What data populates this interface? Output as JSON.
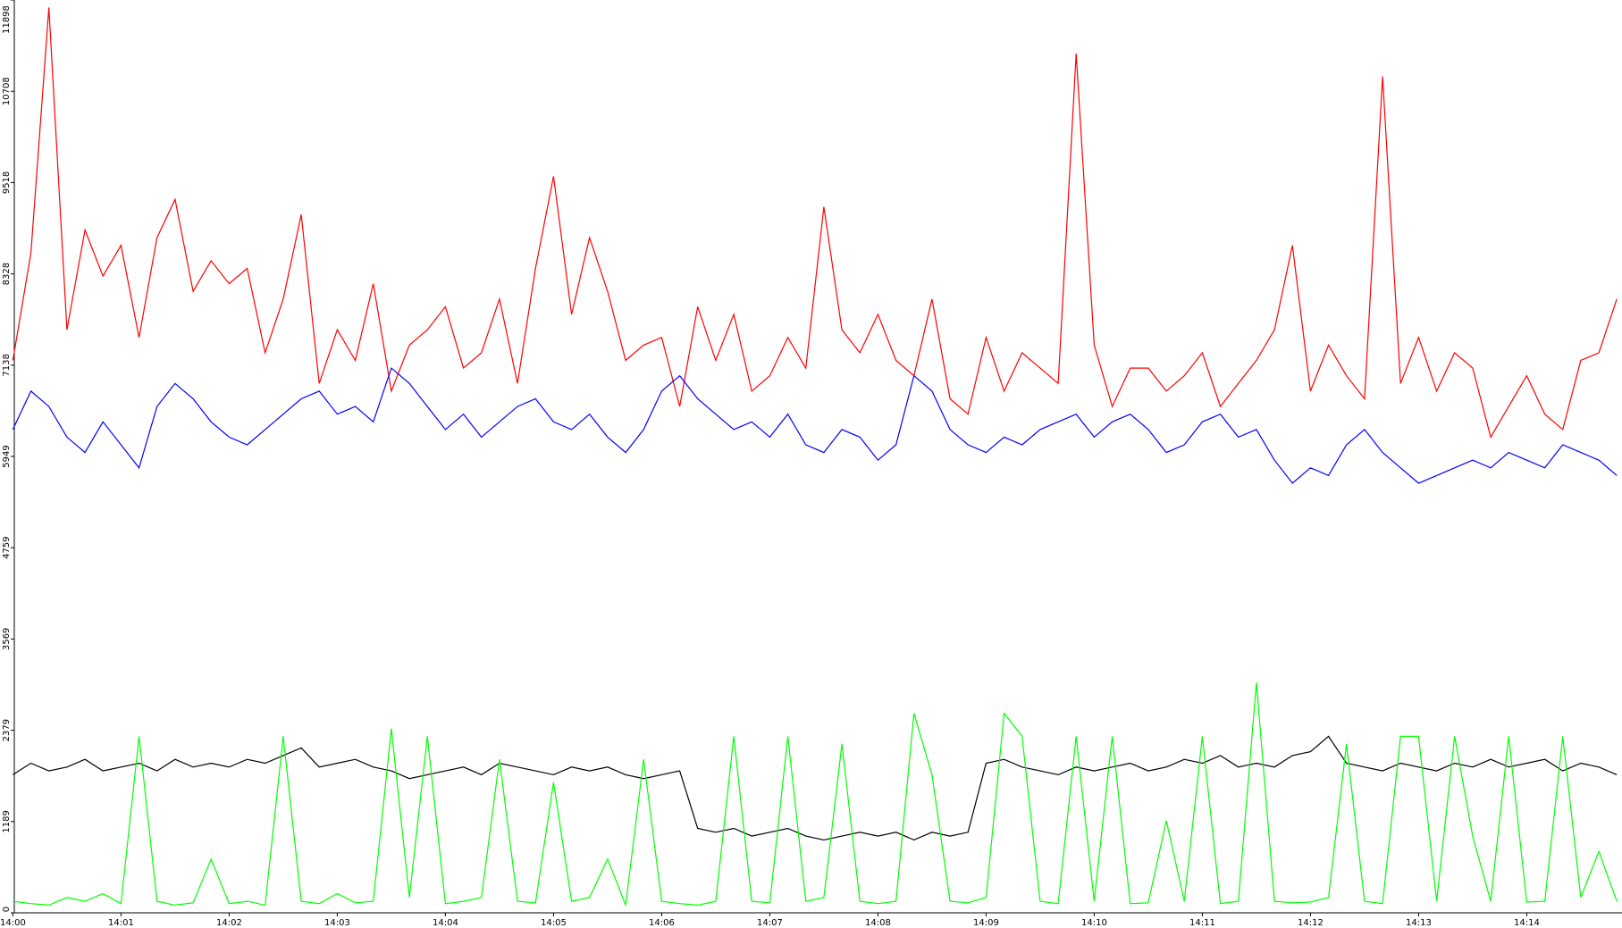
{
  "chart_data": {
    "type": "line",
    "categories": [
      "14:00",
      null,
      null,
      null,
      null,
      null,
      "14:01",
      null,
      null,
      null,
      null,
      null,
      "14:02",
      null,
      null,
      null,
      null,
      null,
      "14:03",
      null,
      null,
      null,
      null,
      null,
      "14:04",
      null,
      null,
      null,
      null,
      null,
      "14:05",
      null,
      null,
      null,
      null,
      null,
      "14:06",
      null,
      null,
      null,
      null,
      null,
      "14:07",
      null,
      null,
      null,
      null,
      null,
      "14:08",
      null,
      null,
      null,
      null,
      null,
      "14:09",
      null,
      null,
      null,
      null,
      null,
      "14:10",
      null,
      null,
      null,
      null,
      null,
      "14:11",
      null,
      null,
      null,
      null,
      null,
      "14:12",
      null,
      null,
      null,
      null,
      null,
      "14:13",
      null,
      null,
      null,
      null,
      null,
      "14:14",
      null,
      null,
      null,
      null,
      null
    ],
    "ylim": [
      0,
      11898
    ],
    "yticks": [
      0,
      1189,
      2379,
      3569,
      4759,
      5949,
      7138,
      8328,
      9518,
      10708,
      11898
    ],
    "series": [
      {
        "color": "#ff0000",
        "values": [
          7200,
          8600,
          11800,
          7600,
          8900,
          8300,
          8700,
          7500,
          8800,
          9300,
          8100,
          8500,
          8200,
          8400,
          7300,
          8000,
          9100,
          6900,
          7600,
          7200,
          8200,
          6800,
          7400,
          7600,
          7900,
          7100,
          7300,
          8000,
          6900,
          8400,
          9600,
          7800,
          8800,
          8100,
          7200,
          7400,
          7500,
          6600,
          7900,
          7200,
          7800,
          6800,
          7000,
          7500,
          7100,
          9200,
          7600,
          7300,
          7800,
          7200,
          7000,
          8000,
          6700,
          6500,
          7500,
          6800,
          7300,
          7100,
          6900,
          11200,
          7400,
          6600,
          7100,
          7100,
          6800,
          7000,
          7300,
          6600,
          6900,
          7200,
          7600,
          8700,
          6800,
          7400,
          7000,
          6700,
          10900,
          6900,
          7500,
          6800,
          7300,
          7100,
          6200,
          6600,
          7000,
          6500,
          6300,
          7200,
          7300,
          8000
        ]
      },
      {
        "color": "#0000ff",
        "values": [
          6300,
          6800,
          6600,
          6200,
          6000,
          6400,
          6100,
          5800,
          6600,
          6900,
          6700,
          6400,
          6200,
          6100,
          6300,
          6500,
          6700,
          6800,
          6500,
          6600,
          6400,
          7100,
          6900,
          6600,
          6300,
          6500,
          6200,
          6400,
          6600,
          6700,
          6400,
          6300,
          6500,
          6200,
          6000,
          6300,
          6800,
          7000,
          6700,
          6500,
          6300,
          6400,
          6200,
          6500,
          6100,
          6000,
          6300,
          6200,
          5900,
          6100,
          7000,
          6800,
          6300,
          6100,
          6000,
          6200,
          6100,
          6300,
          6400,
          6500,
          6200,
          6400,
          6500,
          6300,
          6000,
          6100,
          6400,
          6500,
          6200,
          6300,
          5900,
          5600,
          5800,
          5700,
          6100,
          6300,
          6000,
          5800,
          5600,
          5700,
          5800,
          5900,
          5800,
          6000,
          5900,
          5800,
          6100,
          6000,
          5900,
          5700
        ]
      },
      {
        "color": "#000000",
        "values": [
          1800,
          1950,
          1850,
          1900,
          2000,
          1850,
          1900,
          1950,
          1850,
          2000,
          1900,
          1950,
          1900,
          2000,
          1950,
          2050,
          2150,
          1900,
          1950,
          2000,
          1900,
          1850,
          1750,
          1800,
          1850,
          1900,
          1800,
          1950,
          1900,
          1850,
          1800,
          1900,
          1850,
          1900,
          1800,
          1750,
          1800,
          1850,
          1100,
          1050,
          1100,
          1000,
          1050,
          1100,
          1000,
          950,
          1000,
          1050,
          1000,
          1050,
          950,
          1050,
          1000,
          1050,
          1950,
          2000,
          1900,
          1850,
          1800,
          1900,
          1850,
          1900,
          1950,
          1850,
          1900,
          2000,
          1950,
          2050,
          1900,
          1950,
          1900,
          2050,
          2100,
          2300,
          1950,
          1900,
          1850,
          1950,
          1900,
          1850,
          1950,
          1900,
          2000,
          1900,
          1950,
          2000,
          1850,
          1950,
          1900,
          1800
        ]
      },
      {
        "color": "#00ff00",
        "values": [
          150,
          120,
          100,
          200,
          150,
          250,
          120,
          2300,
          150,
          100,
          130,
          700,
          120,
          150,
          100,
          2300,
          150,
          120,
          250,
          130,
          150,
          2400,
          200,
          2300,
          120,
          150,
          200,
          2000,
          150,
          130,
          1700,
          150,
          200,
          700,
          100,
          2000,
          150,
          120,
          100,
          150,
          2300,
          150,
          130,
          2300,
          150,
          200,
          2200,
          150,
          120,
          150,
          2600,
          1800,
          150,
          130,
          200,
          2600,
          2300,
          150,
          120,
          2300,
          150,
          2300,
          120,
          130,
          1200,
          150,
          2300,
          120,
          150,
          3000,
          150,
          130,
          140,
          200,
          2200,
          150,
          120,
          2300,
          2300,
          150,
          2300,
          1000,
          150,
          2300,
          140,
          150,
          2300,
          200,
          800,
          150
        ]
      }
    ]
  }
}
